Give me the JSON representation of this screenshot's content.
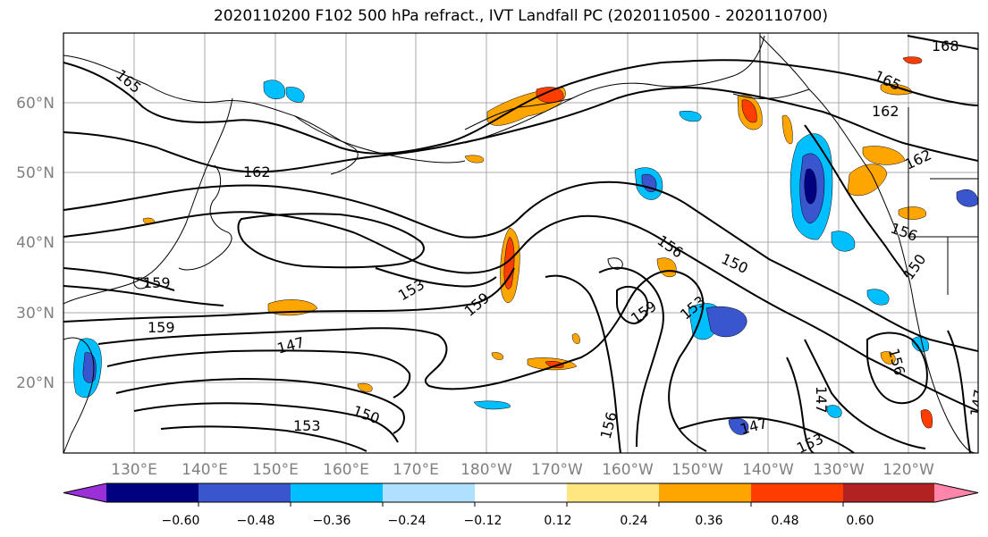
{
  "title": "2020110200 F102 500 hPa refract., IVT Landfall PC (2020110500 - 2020110700)",
  "map": {
    "lat_labels": [
      "60°N",
      "50°N",
      "40°N",
      "30°N",
      "20°N"
    ],
    "lon_labels": [
      "130°E",
      "140°E",
      "150°E",
      "160°E",
      "170°E",
      "180°W",
      "170°W",
      "160°W",
      "150°W",
      "140°W",
      "130°W",
      "120°W"
    ],
    "contour_labels": [
      "168",
      "165",
      "165",
      "162",
      "162",
      "162",
      "159",
      "159",
      "159",
      "159",
      "156",
      "156",
      "156",
      "156",
      "153",
      "153",
      "153",
      "153",
      "150",
      "150",
      "150",
      "147",
      "147",
      "147",
      "147"
    ],
    "label_color": "#808080"
  },
  "colorbar": {
    "ticks": [
      "−0.60",
      "−0.48",
      "−0.36",
      "−0.24",
      "−0.12",
      "0.12",
      "0.24",
      "0.36",
      "0.48",
      "0.60"
    ],
    "colors": [
      "#9b30d9",
      "#000080",
      "#3a56cf",
      "#00bfff",
      "#b0e0ff",
      "#ffffff",
      "#ffe680",
      "#ffa500",
      "#ff3d00",
      "#b22222",
      "#ff85aa"
    ]
  }
}
